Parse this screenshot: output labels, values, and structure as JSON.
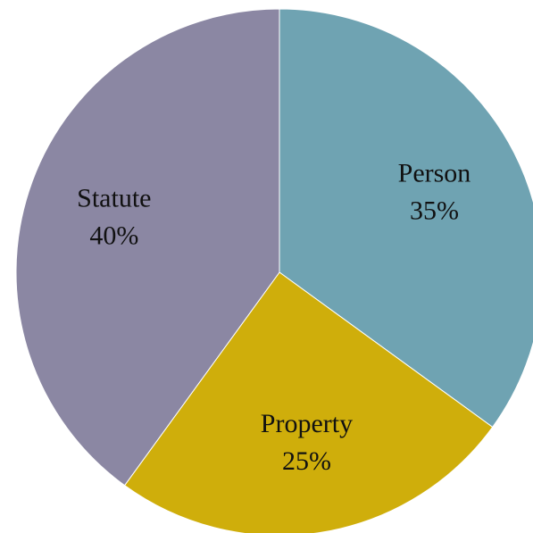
{
  "chart_data": {
    "type": "pie",
    "categories": [
      "Person",
      "Property",
      "Statute"
    ],
    "values": [
      35,
      25,
      40
    ],
    "value_labels": [
      "35%",
      "25%",
      "40%"
    ],
    "colors": [
      "#6fa3b2",
      "#cfae0b",
      "#8b87a3"
    ]
  }
}
